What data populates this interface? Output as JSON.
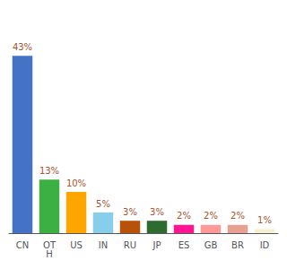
{
  "chart_data": {
    "type": "bar",
    "categories": [
      "CN",
      "OT\nH",
      "US",
      "IN",
      "RU",
      "JP",
      "ES",
      "GB",
      "BR",
      "ID"
    ],
    "values": [
      43,
      13,
      10,
      5,
      3,
      3,
      2,
      2,
      2,
      1
    ],
    "value_labels": [
      "43%",
      "13%",
      "10%",
      "5%",
      "3%",
      "3%",
      "2%",
      "2%",
      "2%",
      "1%"
    ],
    "colors": [
      "#4472c4",
      "#3cb043",
      "#ffa500",
      "#87ceeb",
      "#b8520a",
      "#2e6b2e",
      "#ff1493",
      "#ff9999",
      "#e8a090",
      "#f5f0d0"
    ],
    "ylim": [
      0,
      50
    ],
    "data_labels": true,
    "tick_labels": "x",
    "grid": false
  }
}
